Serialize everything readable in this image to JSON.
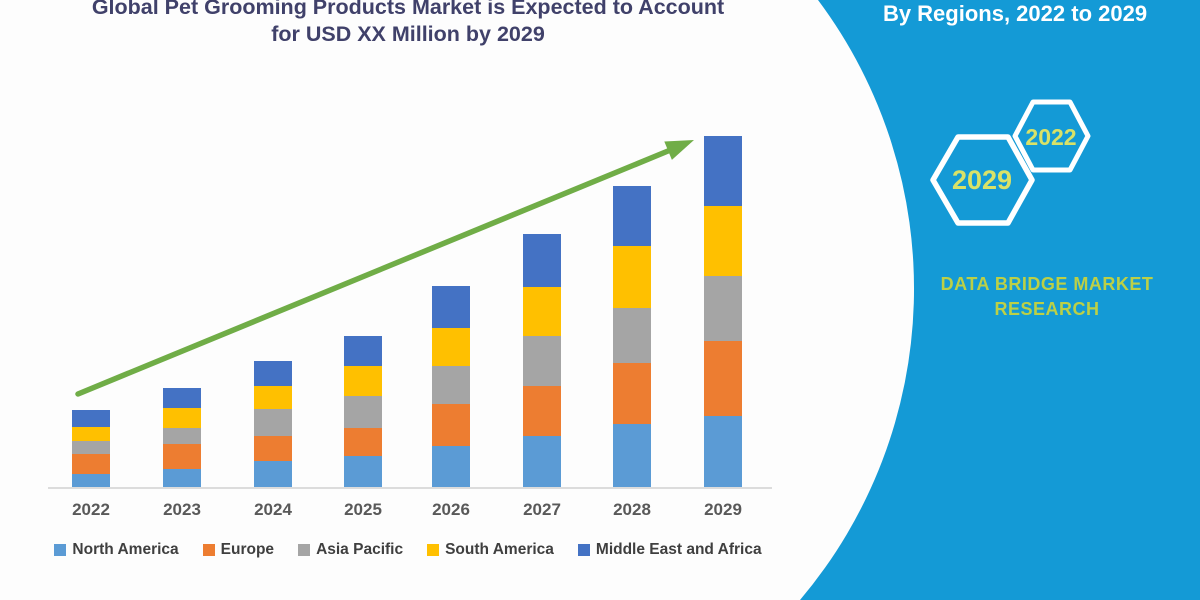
{
  "title": {
    "line1": "Global Pet Grooming Products Market is Expected to Account",
    "line2": "for USD XX Million by 2029"
  },
  "right_panel": {
    "heading": "By Regions, 2022 to 2029",
    "bg_color": "#149ad6",
    "hexagons": [
      {
        "label": "2029"
      },
      {
        "label": "2022"
      }
    ],
    "brand": {
      "line1": "DATA BRIDGE MARKET",
      "line2": "RESEARCH"
    }
  },
  "chart_data": {
    "type": "bar",
    "stacked": true,
    "title": "Global Pet Grooming Products Market is Expected to Account for USD XX Million by 2029",
    "xlabel": "",
    "ylabel": "",
    "grid": false,
    "y_axis_shown": false,
    "legend_position": "bottom",
    "value_units": "relative units (actual figures undisclosed, shown as USD XX Million)",
    "categories": [
      "2022",
      "2023",
      "2024",
      "2025",
      "2026",
      "2027",
      "2028",
      "2029"
    ],
    "series": [
      {
        "name": "North America",
        "color": "#5b9bd5",
        "values": [
          13,
          18,
          26,
          31,
          41,
          51,
          63,
          71
        ]
      },
      {
        "name": "Europe",
        "color": "#ed7d31",
        "values": [
          20,
          25,
          25,
          28,
          42,
          50,
          61,
          75
        ]
      },
      {
        "name": "Asia Pacific",
        "color": "#a5a5a5",
        "values": [
          13,
          16,
          27,
          32,
          38,
          50,
          55,
          65
        ]
      },
      {
        "name": "South America",
        "color": "#ffc000",
        "values": [
          14,
          20,
          23,
          30,
          38,
          49,
          62,
          70
        ]
      },
      {
        "name": "Middle East and Africa",
        "color": "#4472c4",
        "values": [
          17,
          20,
          25,
          30,
          42,
          53,
          60,
          70
        ]
      }
    ],
    "totals": [
      77,
      99,
      126,
      151,
      201,
      253,
      301,
      351
    ],
    "trend_arrow": {
      "direction": "up-right",
      "color": "#70ad47"
    }
  }
}
